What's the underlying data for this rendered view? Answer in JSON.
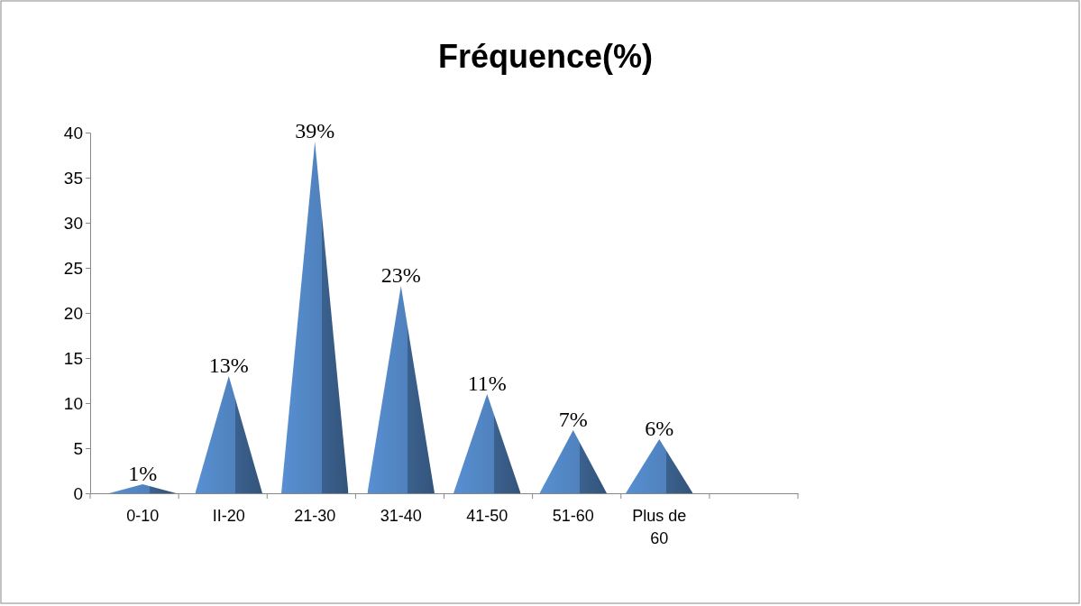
{
  "chart_data": {
    "type": "bar",
    "title": "Fréquence(%)",
    "categories": [
      "0-10",
      "II-20",
      "21-30",
      "31-40",
      "41-50",
      "51-60",
      "Plus de 60",
      null
    ],
    "values": [
      1,
      13,
      39,
      23,
      11,
      7,
      6,
      null
    ],
    "value_labels": [
      "1%",
      "13%",
      "39%",
      "23%",
      "11%",
      "7%",
      "6%",
      null
    ],
    "color": "#4f81bd",
    "ylim": [
      0,
      40
    ],
    "yticks": [
      0,
      5,
      10,
      15,
      20,
      25,
      30,
      35,
      40
    ],
    "grid": false
  }
}
